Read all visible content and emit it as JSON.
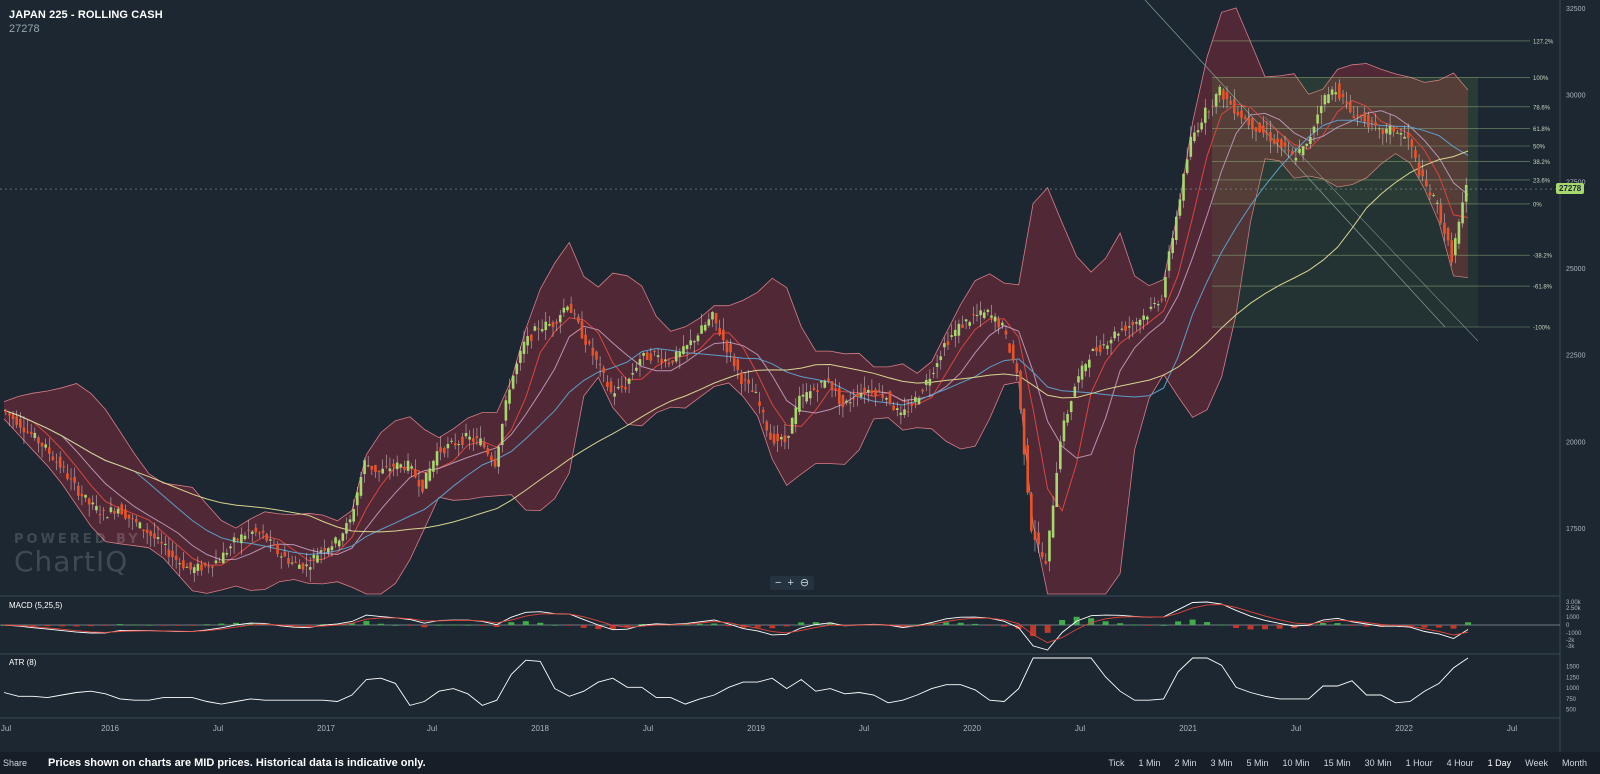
{
  "header": {
    "title": "JAPAN 225 - ROLLING CASH",
    "last_price": "27278"
  },
  "watermark": {
    "line1": "POWERED BY",
    "line2": "ChartIQ"
  },
  "zoom": {
    "out": "−",
    "in": "+",
    "reset": "⊖"
  },
  "footer": {
    "share": "Share",
    "notice": "Prices shown on charts are MID prices. Historical data is indicative only.",
    "periods": [
      "Tick",
      "1 Min",
      "2 Min",
      "3 Min",
      "5 Min",
      "10 Min",
      "15 Min",
      "30 Min",
      "1 Hour",
      "4 Hour",
      "1 Day",
      "Week",
      "Month"
    ]
  },
  "colors": {
    "background": "#1c2731",
    "up": "#a6d86e",
    "down": "#e8542a",
    "band_fill": "#5a2a37",
    "band_edge": "#d87c86",
    "ma_short": "#d8453f",
    "ma_mid": "#b893b0",
    "ma_long": "#5c9ec9",
    "ma_200": "#d7d490"
  },
  "chart_data": [
    {
      "type": "candlestick",
      "title": "JAPAN 225 - ROLLING CASH",
      "last_price": 27278,
      "ylim": [
        15600,
        32500
      ],
      "y_ticks": [
        17500,
        20000,
        22500,
        25000,
        27500,
        30000,
        32500
      ],
      "x_ticks": [
        "Jul",
        "2016",
        "Jul",
        "2017",
        "Jul",
        "2018",
        "Jul",
        "2019",
        "Jul",
        "2020",
        "Jul",
        "2021",
        "Jul",
        "2022",
        "Jul"
      ],
      "overlays": [
        "Bollinger Bands",
        "Moving Averages"
      ],
      "fibonacci": {
        "levels": [
          "127.2%",
          "100%",
          "78.6%",
          "61.8%",
          "50%",
          "38.2%",
          "23.6%",
          "0%",
          "-38.2%",
          "-61.8%",
          "-100%"
        ],
        "prices": [
          31550,
          30500,
          29650,
          29020,
          28520,
          28070,
          27540,
          26850,
          25370,
          24480,
          23300
        ]
      },
      "closes": [
        20900,
        20600,
        20200,
        19800,
        19300,
        18700,
        18200,
        17900,
        18100,
        17700,
        17400,
        17000,
        16600,
        16300,
        16400,
        16600,
        17100,
        17400,
        17300,
        16800,
        16500,
        16400,
        16900,
        17100,
        17700,
        19400,
        19100,
        19300,
        19300,
        18700,
        19700,
        19900,
        20100,
        20000,
        19400,
        21600,
        22800,
        23300,
        23400,
        24000,
        23100,
        22300,
        21400,
        21600,
        22400,
        22500,
        22300,
        22600,
        23100,
        23600,
        22700,
        21800,
        21300,
        20100,
        20000,
        21200,
        21500,
        21800,
        21000,
        21400,
        21500,
        21300,
        20700,
        21200,
        21900,
        22800,
        23300,
        23600,
        23700,
        23300,
        22000,
        17500,
        16400,
        20100,
        21600,
        22500,
        22800,
        23200,
        23400,
        23700,
        24200,
        26500,
        28700,
        29500,
        30100,
        29600,
        29200,
        28900,
        28600,
        28200,
        28500,
        29800,
        30200,
        29500,
        29300,
        28900,
        29000,
        28700,
        27500,
        26800,
        25300,
        27278
      ],
      "panels": [
        {
          "name": "MACD (5,25,5)",
          "y_ticks": [
            "3.00k",
            "2.50k",
            "1000",
            "0",
            "-1000",
            "-2k",
            "-3k"
          ]
        },
        {
          "name": "ATR (8)",
          "y_ticks": [
            "1500",
            "1250",
            "1000",
            "750",
            "500"
          ]
        }
      ]
    }
  ]
}
